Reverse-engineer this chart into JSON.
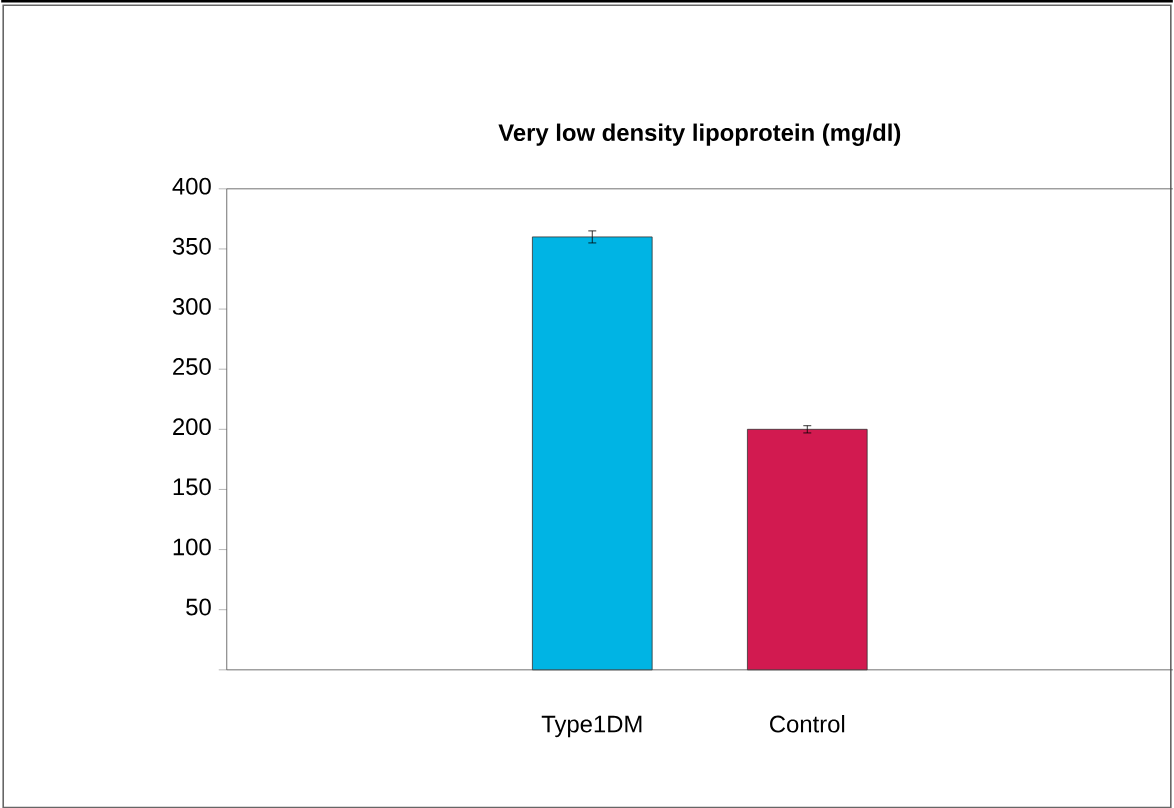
{
  "chart_data": {
    "type": "bar",
    "title": "Very low density lipoprotein (mg/dl)",
    "categories": [
      "Type1DM",
      "Control"
    ],
    "values": [
      360,
      200
    ],
    "errors": [
      5,
      3
    ],
    "colors": [
      "#00b4e4",
      "#d21a50"
    ],
    "ylim": [
      0,
      400
    ],
    "yticks": [
      {
        "value": 0,
        "label": null
      },
      50,
      100,
      150,
      200,
      250,
      300,
      350,
      400
    ],
    "grid": false
  }
}
